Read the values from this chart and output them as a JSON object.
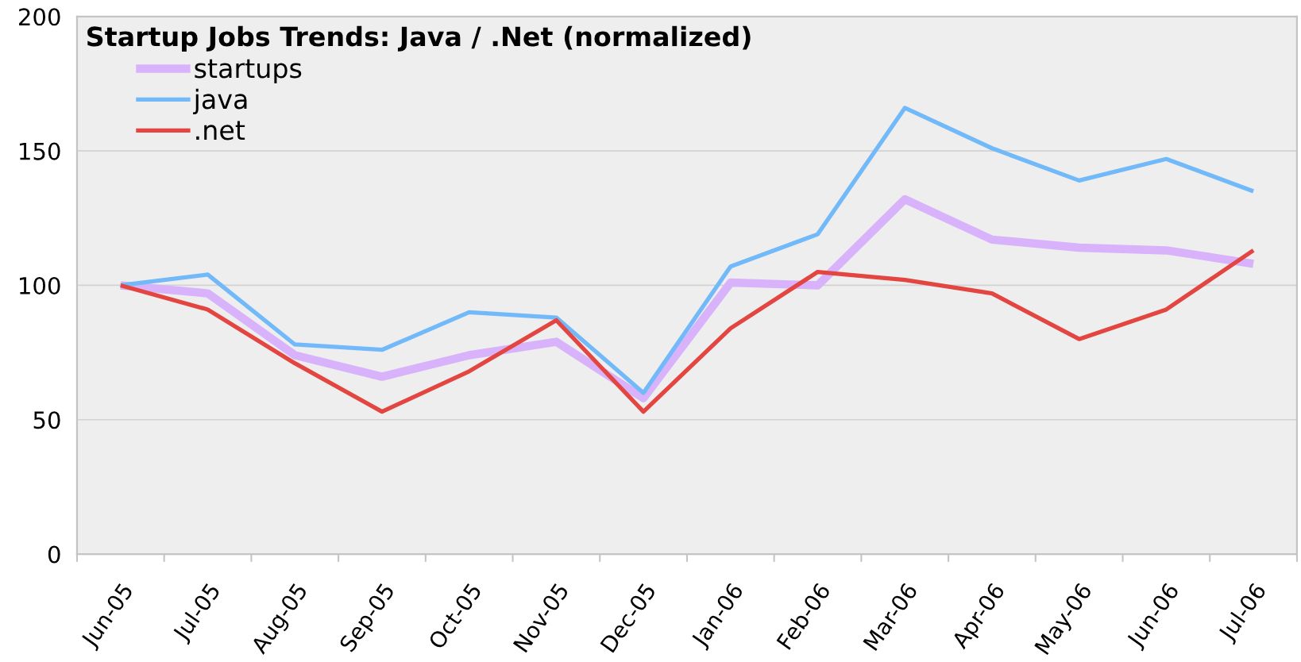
{
  "chart_data": {
    "type": "line",
    "title": "Startup Jobs Trends: Java / .Net (normalized)",
    "categories": [
      "Jun-05",
      "Jul-05",
      "Aug-05",
      "Sep-05",
      "Oct-05",
      "Nov-05",
      "Dec-05",
      "Jan-06",
      "Feb-06",
      "Mar-06",
      "Apr-06",
      "May-06",
      "Jun-06",
      "Jul-06"
    ],
    "series": [
      {
        "name": "startups",
        "color": "#d8b2fb",
        "values": [
          100,
          97,
          74,
          66,
          74,
          79,
          58,
          101,
          100,
          132,
          117,
          114,
          113,
          108
        ]
      },
      {
        "name": "java",
        "color": "#72b9f9",
        "values": [
          100,
          104,
          78,
          76,
          90,
          88,
          60,
          107,
          119,
          166,
          151,
          139,
          147,
          135
        ]
      },
      {
        "name": ".net",
        "color": "#e34541",
        "values": [
          100,
          91,
          71,
          53,
          68,
          87,
          53,
          84,
          105,
          102,
          97,
          80,
          91,
          113
        ]
      }
    ],
    "ylim": [
      0,
      200
    ],
    "yticks": [
      0,
      50,
      100,
      150,
      200
    ],
    "grid": "y",
    "legend": "top left",
    "line_style": "solid"
  }
}
